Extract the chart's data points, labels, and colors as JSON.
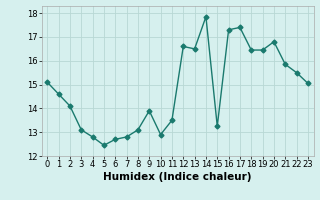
{
  "x": [
    0,
    1,
    2,
    3,
    4,
    5,
    6,
    7,
    8,
    9,
    10,
    11,
    12,
    13,
    14,
    15,
    16,
    17,
    18,
    19,
    20,
    21,
    22,
    23
  ],
  "y": [
    15.1,
    14.6,
    14.1,
    13.1,
    12.8,
    12.45,
    12.7,
    12.8,
    13.1,
    13.9,
    12.9,
    13.5,
    16.6,
    16.5,
    17.85,
    13.25,
    17.3,
    17.4,
    16.45,
    16.45,
    16.8,
    15.85,
    15.5,
    15.05
  ],
  "xlabel": "Humidex (Indice chaleur)",
  "xlim": [
    -0.5,
    23.5
  ],
  "ylim": [
    12,
    18.3
  ],
  "yticks": [
    12,
    13,
    14,
    15,
    16,
    17,
    18
  ],
  "xticks": [
    0,
    1,
    2,
    3,
    4,
    5,
    6,
    7,
    8,
    9,
    10,
    11,
    12,
    13,
    14,
    15,
    16,
    17,
    18,
    19,
    20,
    21,
    22,
    23
  ],
  "line_color": "#1a7a6e",
  "bg_color": "#d6f0ee",
  "grid_color": "#b8d8d4",
  "marker": "D",
  "markersize": 2.5,
  "linewidth": 1.0,
  "xlabel_fontsize": 7.5,
  "tick_fontsize": 6.0
}
